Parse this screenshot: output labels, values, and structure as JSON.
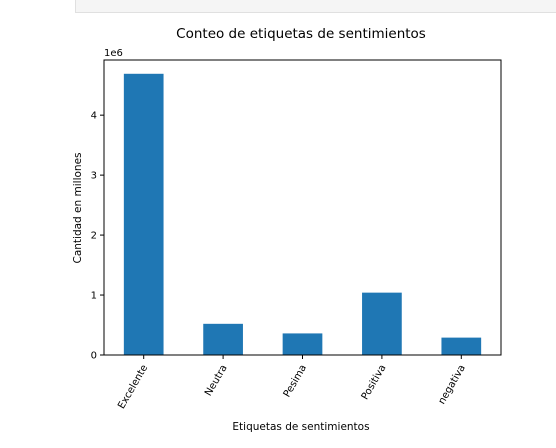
{
  "chart_data": {
    "type": "bar",
    "title": "Conteo de etiquetas de sentimientos",
    "xlabel": "Etiquetas de sentimientos",
    "ylabel": "Cantidad en millones",
    "offset_label": "1e6",
    "categories": [
      "Excelente",
      "Neutra",
      "Pesima",
      "Positiva",
      "negativa"
    ],
    "values": [
      4.69,
      0.52,
      0.36,
      1.04,
      0.29
    ],
    "yticks": [
      "0",
      "1",
      "2",
      "3",
      "4"
    ],
    "ylim": [
      0,
      4.92
    ],
    "bar_color": "#1f77b4",
    "grid": false,
    "legend": false
  }
}
